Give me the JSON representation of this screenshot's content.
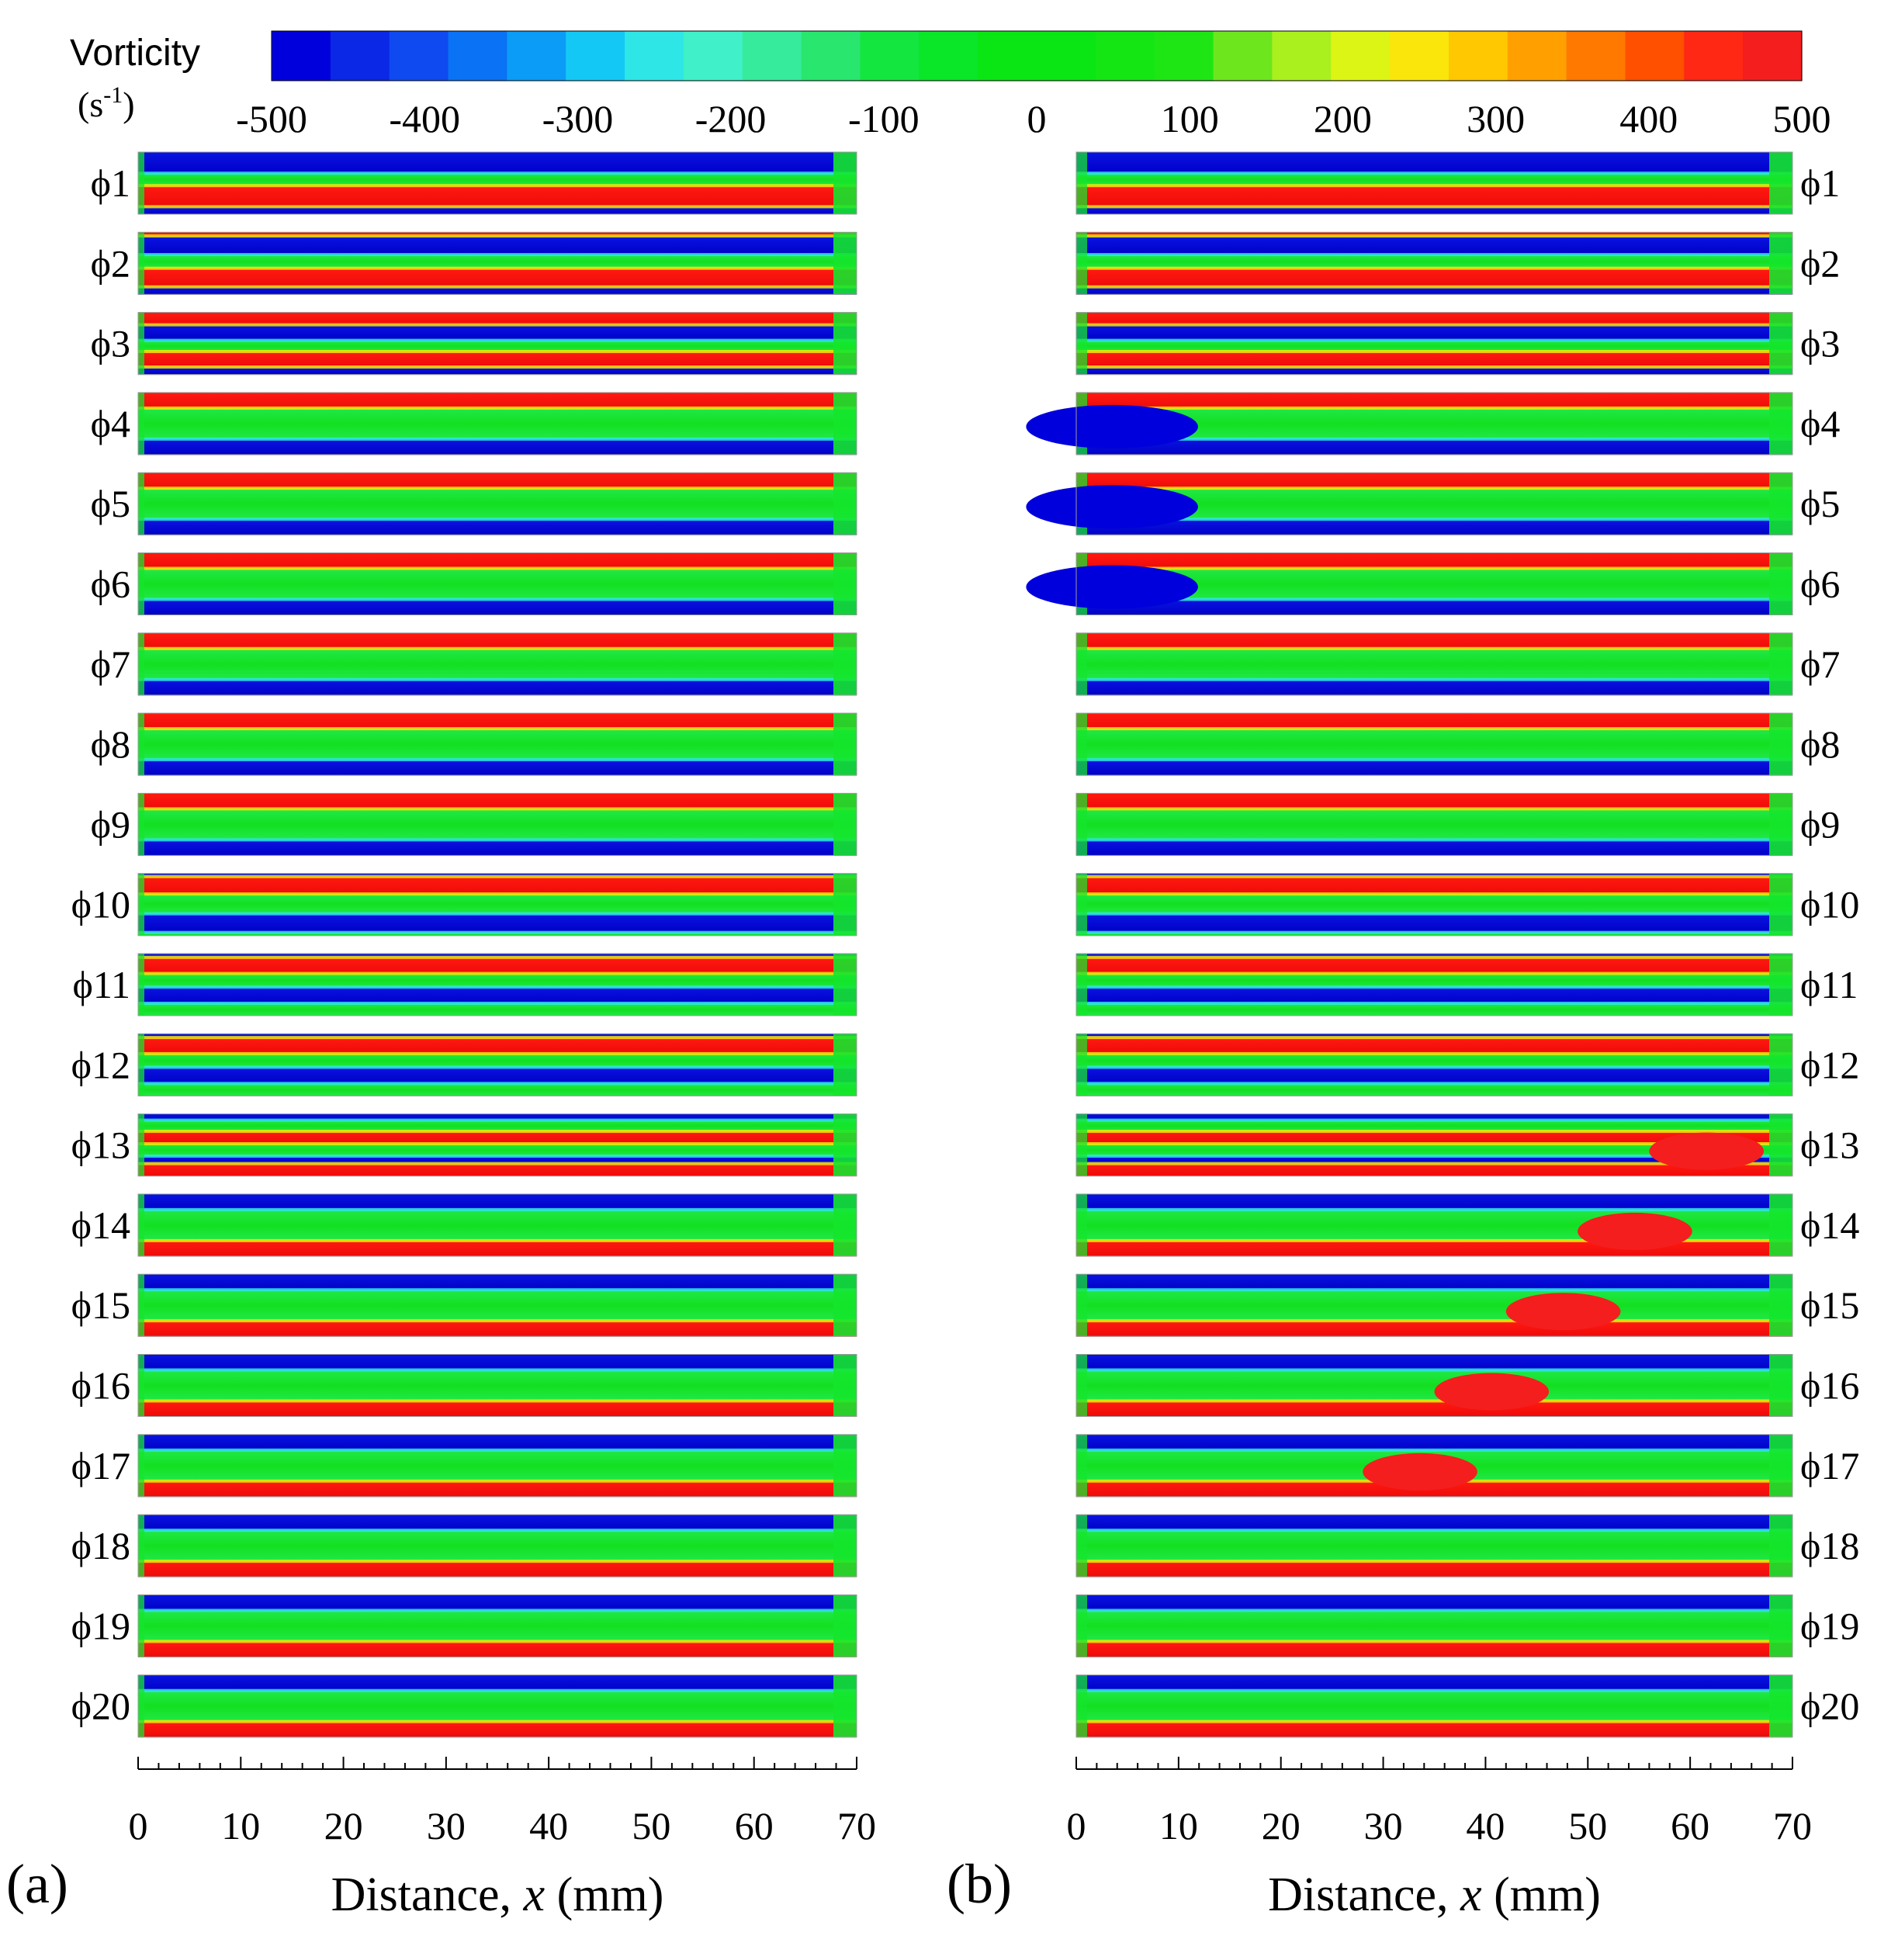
{
  "chart_data": {
    "type": "heatmap",
    "title": "Vorticity",
    "colorbar": {
      "label": "Vorticity",
      "unit_base": "(s",
      "unit_exp": "-1",
      "unit_close": ")",
      "ticks": [
        -500,
        -400,
        -300,
        -200,
        -100,
        0,
        100,
        200,
        300,
        400,
        500
      ],
      "range": [
        -500,
        500
      ],
      "colors": [
        "#0000dc",
        "#0a28e6",
        "#0f4af0",
        "#0a72f5",
        "#0a9cf7",
        "#14c8f5",
        "#2fe6e6",
        "#40f0c8",
        "#36eb9b",
        "#28e66e",
        "#14e640",
        "#0ae628",
        "#0ae614",
        "#0ae614",
        "#14e614",
        "#1ee614",
        "#6ee61e",
        "#aaf01e",
        "#dcf514",
        "#fae60a",
        "#ffc800",
        "#ffa000",
        "#ff7800",
        "#ff5000",
        "#ff2814",
        "#f51e1e"
      ]
    },
    "panels": [
      {
        "id": "a",
        "label": "(a)",
        "xlabel_prefix": "Distance, ",
        "xlabel_var": "x",
        "xlabel_suffix": " (mm)",
        "xlim": [
          0,
          70
        ],
        "xticks": [
          0,
          10,
          20,
          30,
          40,
          50,
          60,
          70
        ],
        "phases": [
          "ϕ1",
          "ϕ2",
          "ϕ3",
          "ϕ4",
          "ϕ5",
          "ϕ6",
          "ϕ7",
          "ϕ8",
          "ϕ9",
          "ϕ10",
          "ϕ11",
          "ϕ12",
          "ϕ13",
          "ϕ14",
          "ϕ15",
          "ϕ16",
          "ϕ17",
          "ϕ18",
          "ϕ19",
          "ϕ20"
        ]
      },
      {
        "id": "b",
        "label": "(b)",
        "xlabel_prefix": "Distance, ",
        "xlabel_var": "x",
        "xlabel_suffix": " (mm)",
        "xlim": [
          0,
          70
        ],
        "xticks": [
          0,
          10,
          20,
          30,
          40,
          50,
          60,
          70
        ],
        "phases": [
          "ϕ1",
          "ϕ2",
          "ϕ3",
          "ϕ4",
          "ϕ5",
          "ϕ6",
          "ϕ7",
          "ϕ8",
          "ϕ9",
          "ϕ10",
          "ϕ11",
          "ϕ12",
          "ϕ13",
          "ϕ14",
          "ϕ15",
          "ϕ16",
          "ϕ17",
          "ϕ18",
          "ϕ19",
          "ϕ20"
        ]
      }
    ]
  }
}
